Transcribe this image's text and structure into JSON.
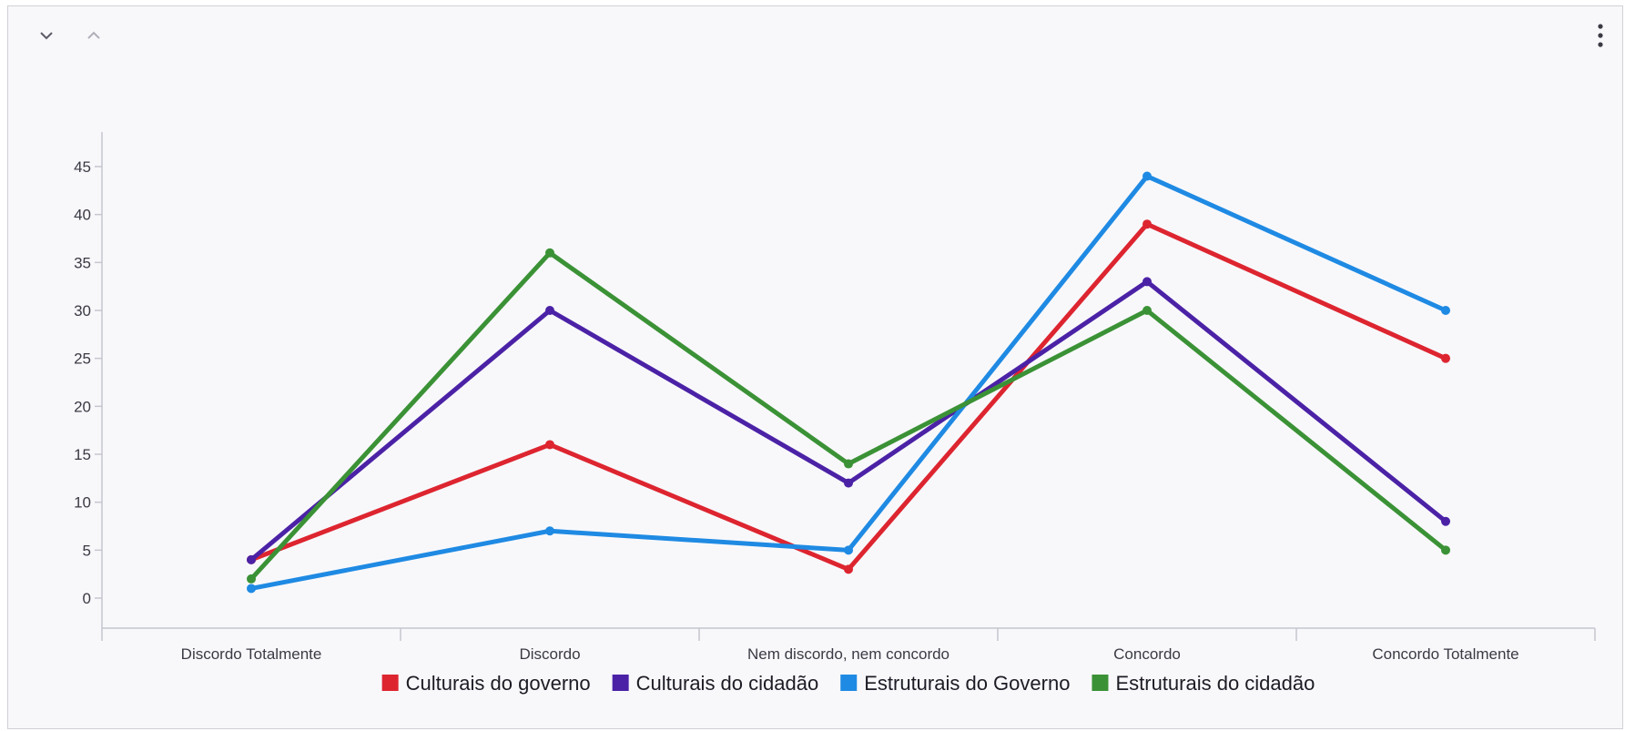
{
  "toolbar": {
    "collapse_icon": "chevron-down-icon",
    "expand_icon": "chevron-up-icon",
    "menu_icon": "more-vertical-icon"
  },
  "chart_data": {
    "type": "line",
    "title": "",
    "xlabel": "",
    "ylabel": "",
    "categories": [
      "Discordo Totalmente",
      "Discordo",
      "Nem discordo, nem concordo",
      "Concordo",
      "Concordo Totalmente"
    ],
    "ylim": [
      -3,
      48
    ],
    "yticks": [
      "0",
      "5",
      "10",
      "15",
      "20",
      "25",
      "30",
      "35",
      "40",
      "45"
    ],
    "grid": false,
    "legend": "bottom",
    "series": [
      {
        "name": "Culturais do governo",
        "color": "#dd2530",
        "values": [
          4,
          16,
          3,
          39,
          25
        ]
      },
      {
        "name": "Culturais do cidadão",
        "color": "#4b22a6",
        "values": [
          4,
          30,
          12,
          33,
          8
        ]
      },
      {
        "name": "Estruturais do Governo",
        "color": "#1f8ae3",
        "values": [
          1,
          7,
          5,
          44,
          30
        ]
      },
      {
        "name": "Estruturais do cidadão",
        "color": "#3b9236",
        "values": [
          2,
          36,
          14,
          30,
          5
        ]
      }
    ]
  }
}
